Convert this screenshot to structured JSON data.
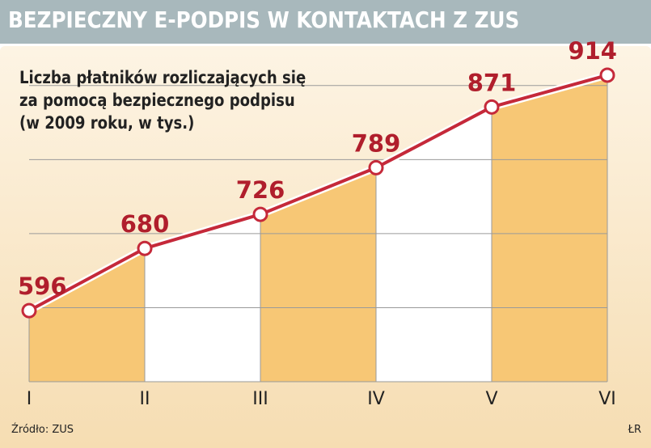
{
  "header": {
    "title": "BEZPIECZNY E-PODPIS W KONTAKTACH Z ZUS"
  },
  "subtitle": {
    "line1": "Liczba płatników rozliczających się",
    "line2": "za pomocą bezpiecznego podpisu",
    "line3": "(w 2009 roku, w tys.)"
  },
  "footer": {
    "source": "Źródło: ZUS",
    "credit": "ŁR"
  },
  "colors": {
    "line": "#c5293a",
    "value_text": "#b01e2c",
    "fill_orange": "#f7c775",
    "fill_white": "#ffffff",
    "grid": "#9a9a9a",
    "header_bg": "#a8b8bc"
  },
  "chart_data": {
    "type": "line",
    "categories": [
      "I",
      "II",
      "III",
      "IV",
      "V",
      "VI"
    ],
    "values": [
      596,
      680,
      726,
      789,
      871,
      914
    ],
    "ylim": [
      500,
      950
    ],
    "grid": true
  }
}
